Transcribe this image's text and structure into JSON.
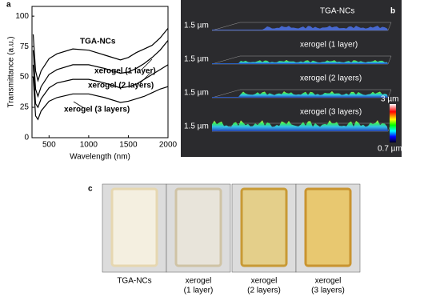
{
  "chart_data": {
    "type": "line",
    "xlabel": "Wavelength (nm)",
    "ylabel": "Transmittance (a.u.)",
    "x": [
      300,
      330,
      360,
      400,
      500,
      600,
      800,
      1000,
      1200,
      1400,
      1500,
      1600,
      1700,
      1800,
      1900,
      2000
    ],
    "series": [
      {
        "name": "TGA-NCs",
        "color": "#000000",
        "values": [
          85,
          55,
          47,
          55,
          65,
          69,
          73,
          72,
          68,
          64,
          66,
          70,
          73,
          76,
          82,
          90
        ]
      },
      {
        "name": "xerogel (1 layer)",
        "color": "#000000",
        "values": [
          72,
          40,
          34,
          42,
          52,
          56,
          60,
          60,
          57,
          53,
          54,
          57,
          61,
          66,
          72,
          80
        ]
      },
      {
        "name": "xerogel (2 layers)",
        "color": "#000000",
        "values": [
          60,
          28,
          25,
          32,
          41,
          45,
          48,
          48,
          45,
          41,
          42,
          44,
          48,
          52,
          56,
          60
        ]
      },
      {
        "name": "xerogel (3 layers)",
        "color": "#000000",
        "values": [
          50,
          18,
          15,
          22,
          30,
          33,
          36,
          36,
          33,
          29,
          30,
          32,
          34,
          37,
          40,
          42
        ]
      }
    ],
    "xlim": [
      285,
      2000
    ],
    "ylim": [
      0,
      108
    ],
    "xticks": [
      500,
      1000,
      1500,
      2000
    ],
    "yticks": [
      0,
      25,
      50,
      75,
      100
    ]
  },
  "panel_labels": [
    "a",
    "b",
    "c"
  ],
  "afm": {
    "rows": [
      {
        "label": "TGA-NCs",
        "scale": "1.5 µm"
      },
      {
        "label": "xerogel (1 layer)",
        "scale": "1.5 µm"
      },
      {
        "label": "xerogel (2 layers)",
        "scale": "1.5 µm"
      },
      {
        "label": "xerogel (3 layers)",
        "scale": "1.5 µm"
      }
    ],
    "colorbar": {
      "max": "3 µm",
      "min": "0.7 µm"
    }
  },
  "photos": [
    [
      "TGA-NCs"
    ],
    [
      "xerogel",
      "(1 layer)"
    ],
    [
      "xerogel",
      "(2 layers)"
    ],
    [
      "xerogel",
      "(3 layers)"
    ]
  ]
}
